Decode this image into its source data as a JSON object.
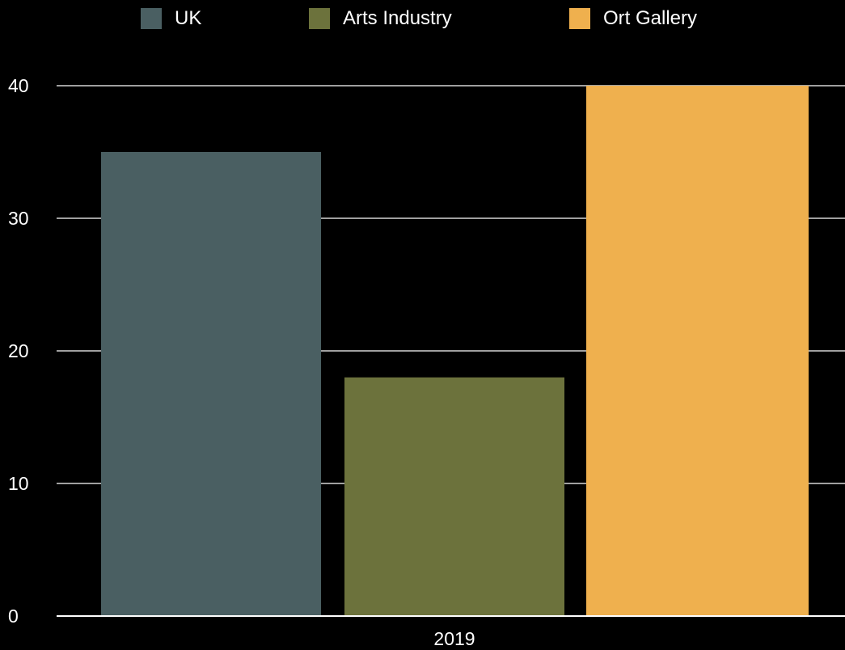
{
  "chart_data": {
    "type": "bar",
    "categories": [
      "2019"
    ],
    "series": [
      {
        "name": "UK",
        "values": [
          35
        ],
        "color": "#4a5f62"
      },
      {
        "name": "Arts Industry",
        "values": [
          18
        ],
        "color": "#6c723c"
      },
      {
        "name": "Ort Gallery",
        "values": [
          40
        ],
        "color": "#efb04e"
      }
    ],
    "ylim": [
      0,
      40
    ],
    "yticks": [
      "0",
      "10",
      "20",
      "30",
      "40"
    ],
    "grid": true,
    "legend_position": "top"
  }
}
